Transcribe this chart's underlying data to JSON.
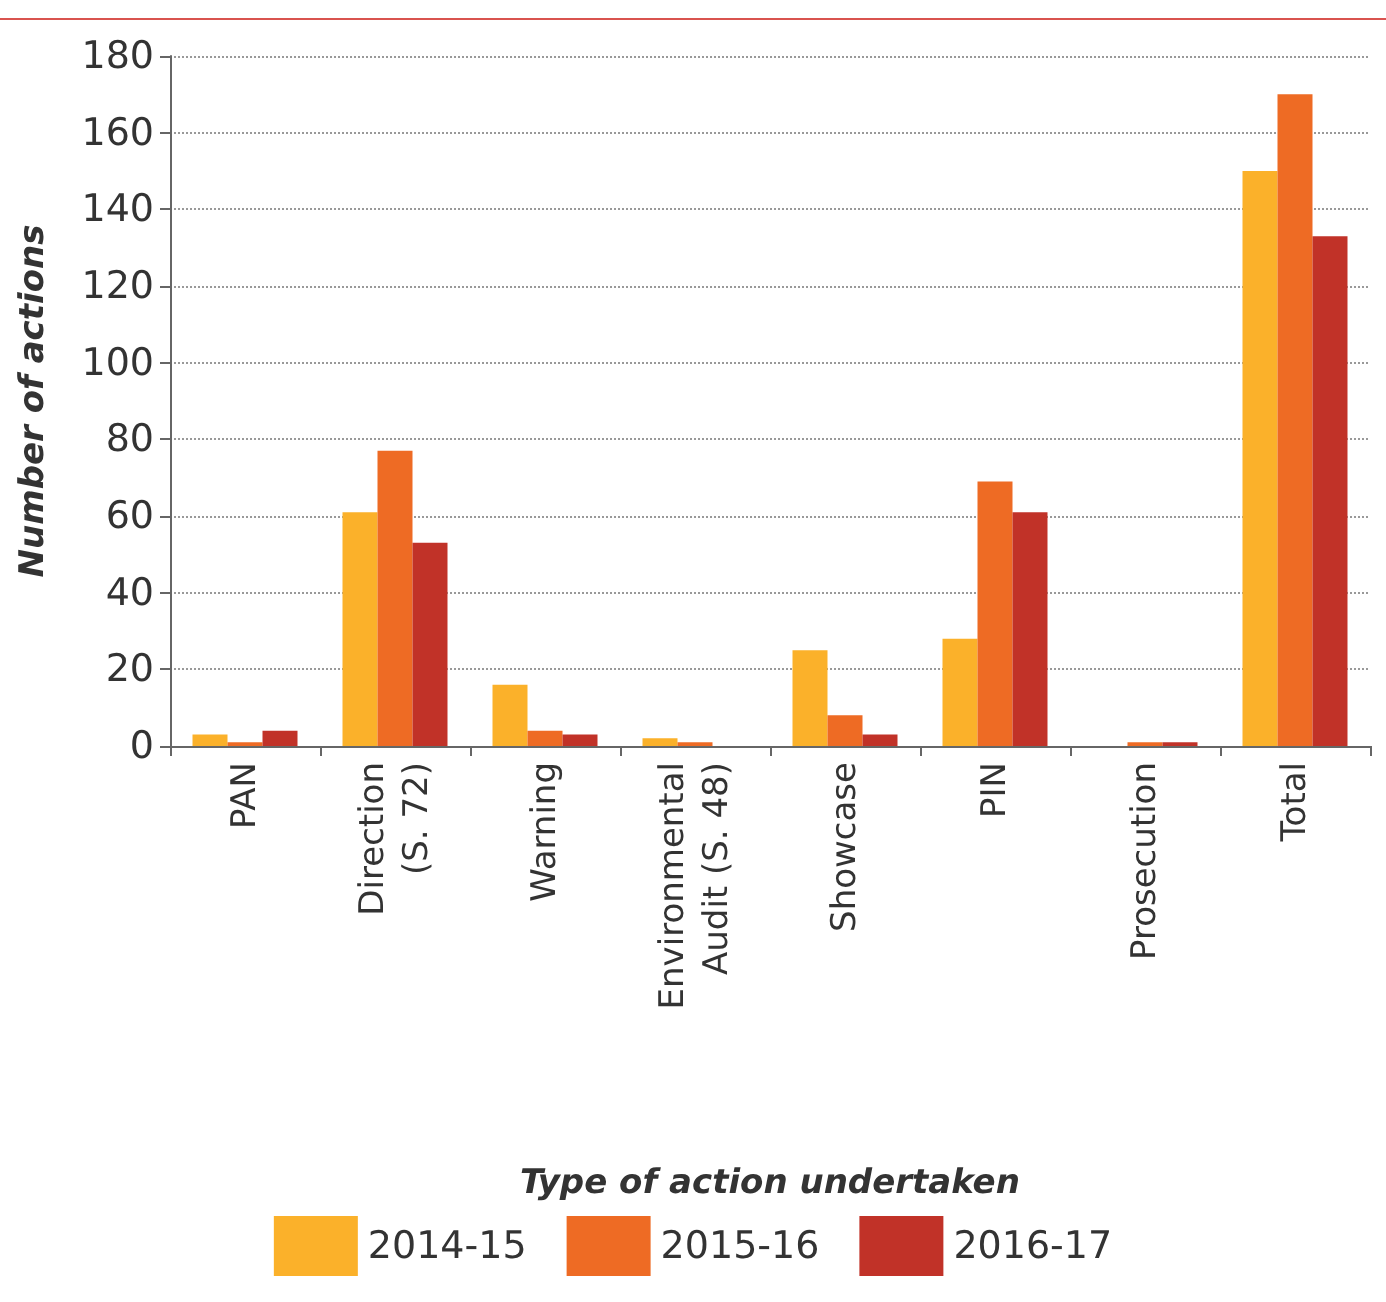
{
  "chart_data": {
    "type": "bar",
    "xlabel": "Type of action undertaken",
    "ylabel": "Number of actions",
    "categories": [
      "PAN",
      "Direction\n(S. 72)",
      "Warning",
      "Environmental\nAudit (S. 48)",
      "Showcase",
      "PIN",
      "Prosecution",
      "Total"
    ],
    "series": [
      {
        "name": "2014-15",
        "color": "#fbb12a",
        "values": [
          3,
          61,
          16,
          2,
          25,
          28,
          0,
          150
        ]
      },
      {
        "name": "2015-16",
        "color": "#ee6b24",
        "values": [
          1,
          77,
          4,
          1,
          8,
          69,
          1,
          170
        ]
      },
      {
        "name": "2016-17",
        "color": "#c13228",
        "values": [
          4,
          53,
          3,
          0,
          3,
          61,
          1,
          133
        ]
      }
    ],
    "ylim": [
      0,
      180
    ],
    "yticks": [
      0,
      20,
      40,
      60,
      80,
      100,
      120,
      140,
      160,
      180
    ],
    "grid": "y",
    "legend": "bottom"
  }
}
